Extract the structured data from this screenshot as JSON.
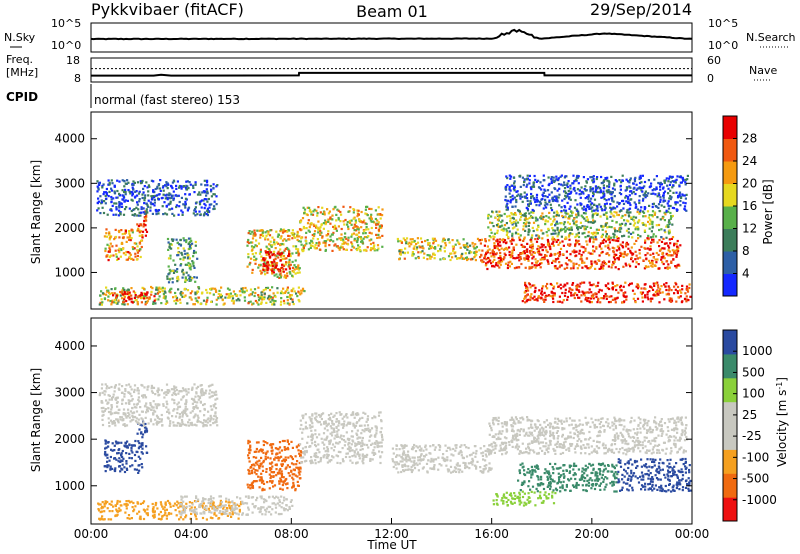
{
  "header": {
    "station": "Pykkvibaer (fitACF)",
    "beam": "Beam 01",
    "date": "29/Sep/2014"
  },
  "colors": {
    "power_scale": [
      "#1428ff",
      "#2d5fa6",
      "#3c7d5a",
      "#58b04a",
      "#e6d820",
      "#f59a10",
      "#f05810",
      "#e80000"
    ],
    "velocity_scale": [
      "#ee1010",
      "#f06a10",
      "#f5a020",
      "#c8c8c0",
      "#c8c8c0",
      "#8ad03a",
      "#3a8a6a",
      "#2a4aa0"
    ],
    "ground_scatter": "#c8c8c0"
  },
  "chart_data": [
    {
      "type": "line",
      "panel": "noise",
      "left_label": "N.Sky",
      "right_label": "N.Search",
      "left_ticks": [
        "10^5",
        "10^0"
      ],
      "right_ticks": [
        "10^5",
        "10^0"
      ],
      "series": [
        {
          "name": "N.Sky",
          "style": "solid"
        },
        {
          "name": "N.Search",
          "style": "dotted"
        }
      ],
      "x": [
        0,
        8,
        16,
        16.5,
        17,
        17.5,
        18,
        20.5,
        24
      ],
      "y": [
        2.0,
        2.05,
        2.1,
        2.8,
        3.6,
        2.6,
        2.1,
        3.4,
        2.0
      ]
    },
    {
      "type": "line",
      "panel": "freq_nave",
      "left_label": [
        "Freq.",
        "[MHz]"
      ],
      "right_label": "Nave",
      "left_ticks": [
        "18",
        "8"
      ],
      "right_ticks": [
        "60",
        "0"
      ],
      "series": [
        {
          "name": "Freq.",
          "style": "solid",
          "x": [
            0,
            2.5,
            2.8,
            3.2,
            8.3,
            8.31,
            18.1,
            18.11,
            24
          ],
          "y": [
            9.5,
            9.5,
            10,
            9.5,
            9.6,
            11.2,
            11.2,
            9.6,
            9.6
          ]
        },
        {
          "name": "Nave",
          "style": "dotted",
          "x": [
            0,
            24
          ],
          "y": [
            35,
            35
          ]
        }
      ]
    },
    {
      "type": "label",
      "panel": "cpid",
      "left_label": "CPID",
      "text": "normal (fast stereo) 153"
    },
    {
      "type": "heatmap",
      "panel": "power",
      "ylabel": "Slant Range [km]",
      "yticks": [
        1000,
        2000,
        3000,
        4000
      ],
      "ylim": [
        180,
        4600
      ],
      "colorbar_label": "Power [dB]",
      "colorbar_ticks": [
        "28",
        "24",
        "20",
        "16",
        "12",
        "8",
        "4"
      ],
      "regions": [
        {
          "x": [
            0.3,
            8.5
          ],
          "y": [
            300,
            700
          ],
          "v": 0.55
        },
        {
          "x": [
            0.8,
            2.5
          ],
          "y": [
            350,
            600
          ],
          "v": 0.95
        },
        {
          "x": [
            0.5,
            2.0
          ],
          "y": [
            1300,
            2000
          ],
          "v": 0.7
        },
        {
          "x": [
            1.8,
            2.2
          ],
          "y": [
            1800,
            2400
          ],
          "v": 0.9
        },
        {
          "x": [
            3.0,
            4.2
          ],
          "y": [
            800,
            1800
          ],
          "v": 0.35
        },
        {
          "x": [
            6.2,
            8.3
          ],
          "y": [
            900,
            2000
          ],
          "v": 0.6
        },
        {
          "x": [
            6.8,
            8.0
          ],
          "y": [
            1000,
            1500
          ],
          "v": 0.95
        },
        {
          "x": [
            8.3,
            11.6
          ],
          "y": [
            1500,
            2500
          ],
          "v": 0.6
        },
        {
          "x": [
            12.2,
            15.5
          ],
          "y": [
            1300,
            1800
          ],
          "v": 0.55
        },
        {
          "x": [
            15.5,
            23.5
          ],
          "y": [
            1100,
            1800
          ],
          "v": 0.85
        },
        {
          "x": [
            15.8,
            23.2
          ],
          "y": [
            1800,
            2400
          ],
          "v": 0.45
        },
        {
          "x": [
            17.2,
            23.9
          ],
          "y": [
            350,
            800
          ],
          "v": 0.9
        },
        {
          "x": [
            0.2,
            5.0
          ],
          "y": [
            2300,
            3100
          ],
          "v": 0.15
        },
        {
          "x": [
            16.5,
            23.8
          ],
          "y": [
            2400,
            3200
          ],
          "v": 0.15
        }
      ]
    },
    {
      "type": "heatmap",
      "panel": "velocity",
      "ylabel": "Slant Range [km]",
      "xlabel": "Time UT",
      "xticks": [
        "00:00",
        "04:00",
        "08:00",
        "12:00",
        "16:00",
        "20:00",
        "00:00"
      ],
      "xlim": [
        0,
        24
      ],
      "yticks": [
        1000,
        2000,
        3000,
        4000
      ],
      "ylim": [
        180,
        4600
      ],
      "colorbar_label": "Velocity [m s^-1]",
      "colorbar_ticks": [
        "1000",
        "500",
        "100",
        "25",
        "-25",
        "-100",
        "-500",
        "-1000"
      ],
      "regions": [
        {
          "x": [
            0.2,
            6.0
          ],
          "y": [
            300,
            700
          ],
          "c": "#f5a020"
        },
        {
          "x": [
            0.5,
            2.0
          ],
          "y": [
            1300,
            2000
          ],
          "c": "#2a4aa0"
        },
        {
          "x": [
            1.8,
            2.2
          ],
          "y": [
            1700,
            2400
          ],
          "c": "#2a4aa0"
        },
        {
          "x": [
            0.3,
            5.0
          ],
          "y": [
            2300,
            3200
          ],
          "c": "#c8c8c0"
        },
        {
          "x": [
            6.2,
            8.4
          ],
          "y": [
            900,
            2000
          ],
          "c": "#f06a10"
        },
        {
          "x": [
            8.3,
            11.6
          ],
          "y": [
            1500,
            2600
          ],
          "c": "#c8c8c0"
        },
        {
          "x": [
            12.0,
            16.0
          ],
          "y": [
            1300,
            1900
          ],
          "c": "#c8c8c0"
        },
        {
          "x": [
            15.8,
            23.8
          ],
          "y": [
            1700,
            2500
          ],
          "c": "#c8c8c0"
        },
        {
          "x": [
            16.0,
            18.5
          ],
          "y": [
            600,
            900
          ],
          "c": "#8ad03a"
        },
        {
          "x": [
            17.0,
            21.0
          ],
          "y": [
            900,
            1500
          ],
          "c": "#3a8a6a"
        },
        {
          "x": [
            21.0,
            23.9
          ],
          "y": [
            900,
            1600
          ],
          "c": "#2a4aa0"
        },
        {
          "x": [
            3.5,
            8.0
          ],
          "y": [
            400,
            800
          ],
          "c": "#c8c8c0"
        }
      ]
    }
  ]
}
